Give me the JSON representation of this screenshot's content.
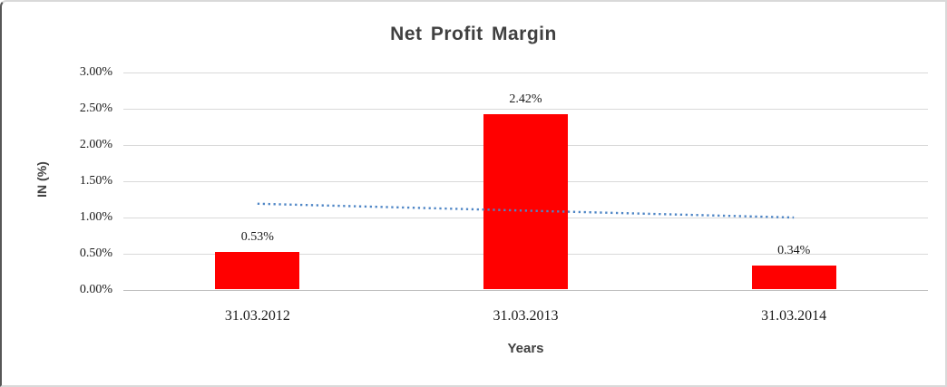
{
  "chart_data": {
    "type": "bar",
    "title": "Net Profit Margin",
    "xlabel": "Years",
    "ylabel": "IN (%)",
    "categories": [
      "31.03.2012",
      "31.03.2013",
      "31.03.2014"
    ],
    "values": [
      0.53,
      2.42,
      0.34
    ],
    "data_labels": [
      "0.53%",
      "2.42%",
      "0.34%"
    ],
    "ylim": [
      0,
      3
    ],
    "ytick_step": 0.5,
    "ytick_labels": [
      "0.00%",
      "0.50%",
      "1.00%",
      "1.50%",
      "2.00%",
      "2.50%",
      "3.00%"
    ],
    "grid": true,
    "legend": "none",
    "bar_color": "#ff0000",
    "trendline": {
      "type": "linear",
      "style": "dotted",
      "color": "#4f86c6",
      "start_value": 1.19,
      "end_value": 1.0
    },
    "colors": {
      "title": "#404040",
      "axis_title": "#404040",
      "tick_label": "#1a1a1a",
      "gridline": "#d9d9d9",
      "axis_line": "#bfbfbf"
    }
  }
}
